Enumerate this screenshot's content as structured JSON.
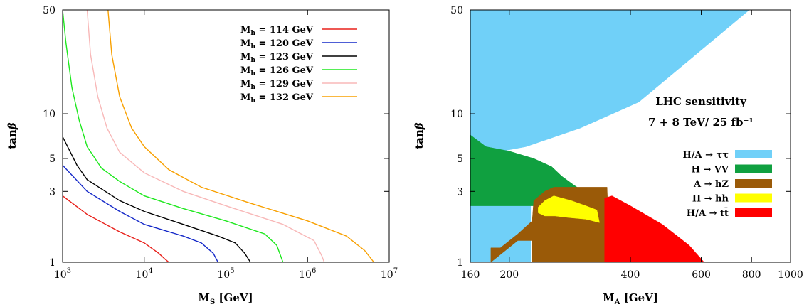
{
  "chart_data": [
    {
      "type": "line",
      "xlabel": "M_S [GeV]",
      "ylabel": "tanβ",
      "x_scale": "log",
      "y_scale": "log",
      "xlim": [
        1000,
        10000000
      ],
      "ylim": [
        1,
        50
      ],
      "x_ticks": [
        {
          "value": 1000,
          "label": "10^3"
        },
        {
          "value": 10000,
          "label": "10^4"
        },
        {
          "value": 100000,
          "label": "10^5"
        },
        {
          "value": 1000000,
          "label": "10^6"
        },
        {
          "value": 10000000,
          "label": "10^7"
        }
      ],
      "y_ticks": [
        {
          "value": 1,
          "label": "1"
        },
        {
          "value": 3,
          "label": "3"
        },
        {
          "value": 5,
          "label": "5"
        },
        {
          "value": 10,
          "label": "10"
        },
        {
          "value": 50,
          "label": "50"
        }
      ],
      "legend_position": "top-right",
      "series": [
        {
          "name": "M_h = 114 GeV",
          "color": "#e8201a",
          "points": [
            [
              1000,
              2.8
            ],
            [
              2000,
              2.1
            ],
            [
              5000,
              1.6
            ],
            [
              10000,
              1.35
            ],
            [
              15000,
              1.15
            ],
            [
              18000,
              1.05
            ],
            [
              20000,
              1.0
            ]
          ]
        },
        {
          "name": "M_h = 120 GeV",
          "color": "#1428c8",
          "points": [
            [
              1000,
              4.5
            ],
            [
              2000,
              3.0
            ],
            [
              5000,
              2.2
            ],
            [
              10000,
              1.8
            ],
            [
              30000,
              1.5
            ],
            [
              50000,
              1.35
            ],
            [
              70000,
              1.15
            ],
            [
              80000,
              1.0
            ]
          ]
        },
        {
          "name": "M_h = 123 GeV",
          "color": "#000000",
          "points": [
            [
              1000,
              7.0
            ],
            [
              1500,
              4.5
            ],
            [
              2000,
              3.6
            ],
            [
              5000,
              2.6
            ],
            [
              10000,
              2.2
            ],
            [
              30000,
              1.8
            ],
            [
              80000,
              1.5
            ],
            [
              130000,
              1.35
            ],
            [
              170000,
              1.15
            ],
            [
              200000,
              1.0
            ]
          ]
        },
        {
          "name": "M_h = 126 GeV",
          "color": "#1ee81e",
          "points": [
            [
              1000,
              50
            ],
            [
              1100,
              30
            ],
            [
              1300,
              15
            ],
            [
              1600,
              9
            ],
            [
              2000,
              6
            ],
            [
              3000,
              4.3
            ],
            [
              5000,
              3.5
            ],
            [
              10000,
              2.8
            ],
            [
              30000,
              2.3
            ],
            [
              100000,
              1.9
            ],
            [
              300000,
              1.55
            ],
            [
              420000,
              1.3
            ],
            [
              500000,
              1.0
            ]
          ]
        },
        {
          "name": "M_h = 129 GeV",
          "color": "#f8b8b8",
          "points": [
            [
              2000,
              50
            ],
            [
              2200,
              25
            ],
            [
              2700,
              13
            ],
            [
              3500,
              8
            ],
            [
              5000,
              5.5
            ],
            [
              10000,
              4.0
            ],
            [
              30000,
              3.0
            ],
            [
              100000,
              2.4
            ],
            [
              500000,
              1.8
            ],
            [
              1200000,
              1.4
            ],
            [
              1500000,
              1.1
            ],
            [
              1600000,
              1.0
            ]
          ]
        },
        {
          "name": "M_h = 132 GeV",
          "color": "#f8a000",
          "points": [
            [
              3600,
              50
            ],
            [
              4000,
              25
            ],
            [
              5000,
              13
            ],
            [
              7000,
              8
            ],
            [
              10000,
              6
            ],
            [
              20000,
              4.2
            ],
            [
              50000,
              3.2
            ],
            [
              200000,
              2.5
            ],
            [
              1000000,
              1.9
            ],
            [
              3000000,
              1.5
            ],
            [
              5000000,
              1.2
            ],
            [
              6500000,
              1.0
            ]
          ]
        }
      ]
    },
    {
      "type": "area",
      "xlabel": "M_A [GeV]",
      "ylabel": "tanβ",
      "x_scale": "log",
      "y_scale": "log",
      "xlim": [
        160,
        1000
      ],
      "ylim": [
        1,
        50
      ],
      "x_ticks": [
        {
          "value": 160,
          "label": "160"
        },
        {
          "value": 200,
          "label": "200"
        },
        {
          "value": 400,
          "label": "400"
        },
        {
          "value": 600,
          "label": "600"
        },
        {
          "value": 800,
          "label": "800"
        },
        {
          "value": 1000,
          "label": "1000"
        }
      ],
      "y_ticks": [
        {
          "value": 1,
          "label": "1"
        },
        {
          "value": 3,
          "label": "3"
        },
        {
          "value": 5,
          "label": "5"
        },
        {
          "value": 10,
          "label": "10"
        },
        {
          "value": 50,
          "label": "50"
        }
      ],
      "annotation": [
        "LHC sensitivity",
        "7 + 8 TeV/ 25 fb⁻¹"
      ],
      "legend_position": "right",
      "series": [
        {
          "name": "H/A → ττ",
          "color": "#70d0f8",
          "polygons": [
            [
              [
                160,
                50
              ],
              [
                790,
                50
              ],
              [
                420,
                12
              ],
              [
                300,
                8
              ],
              [
                220,
                6
              ],
              [
                185,
                5.5
              ],
              [
                160,
                4.8
              ]
            ],
            [
              [
                160,
                2.4
              ],
              [
                160,
                1.0
              ],
              [
                226,
                1.0
              ],
              [
                226,
                2.4
              ]
            ]
          ]
        },
        {
          "name": "H → VV",
          "color": "#10a040",
          "polygons": [
            [
              [
                160,
                7.2
              ],
              [
                175,
                6
              ],
              [
                200,
                5.6
              ],
              [
                230,
                5
              ],
              [
                255,
                4.4
              ],
              [
                270,
                3.8
              ],
              [
                290,
                3.3
              ],
              [
                300,
                3.1
              ],
              [
                320,
                2.85
              ],
              [
                340,
                2.4
              ],
              [
                340,
                1.6
              ],
              [
                320,
                1.85
              ],
              [
                300,
                2.05
              ],
              [
                270,
                2.2
              ],
              [
                250,
                2.4
              ],
              [
                160,
                2.4
              ]
            ]
          ]
        },
        {
          "name": "A → hZ",
          "color": "#9a5a08",
          "polygons": [
            [
              [
                180,
                1.25
              ],
              [
                190,
                1.25
              ],
              [
                210,
                1.55
              ],
              [
                228,
                1.9
              ],
              [
                230,
                2.6
              ],
              [
                245,
                3.0
              ],
              [
                258,
                3.2
              ],
              [
                350,
                3.2
              ],
              [
                355,
                1.0
              ],
              [
                228,
                1.0
              ],
              [
                228,
                1.4
              ],
              [
                210,
                1.4
              ],
              [
                180,
                1.0
              ]
            ]
          ]
        },
        {
          "name": "H → hh",
          "color": "#ffff00",
          "polygons": [
            [
              [
                236,
                2.35
              ],
              [
                245,
                2.6
              ],
              [
                258,
                2.8
              ],
              [
                285,
                2.6
              ],
              [
                310,
                2.4
              ],
              [
                330,
                2.25
              ],
              [
                335,
                1.85
              ],
              [
                310,
                1.95
              ],
              [
                280,
                2.0
              ],
              [
                260,
                2.05
              ],
              [
                245,
                2.05
              ],
              [
                236,
                2.15
              ]
            ]
          ]
        },
        {
          "name": "H/A → tt̄",
          "color": "#ff0000",
          "polygons": [
            [
              [
                345,
                1.0
              ],
              [
                345,
                2.7
              ],
              [
                360,
                2.8
              ],
              [
                400,
                2.4
              ],
              [
                480,
                1.8
              ],
              [
                560,
                1.3
              ],
              [
                610,
                1.0
              ]
            ]
          ]
        }
      ]
    }
  ]
}
